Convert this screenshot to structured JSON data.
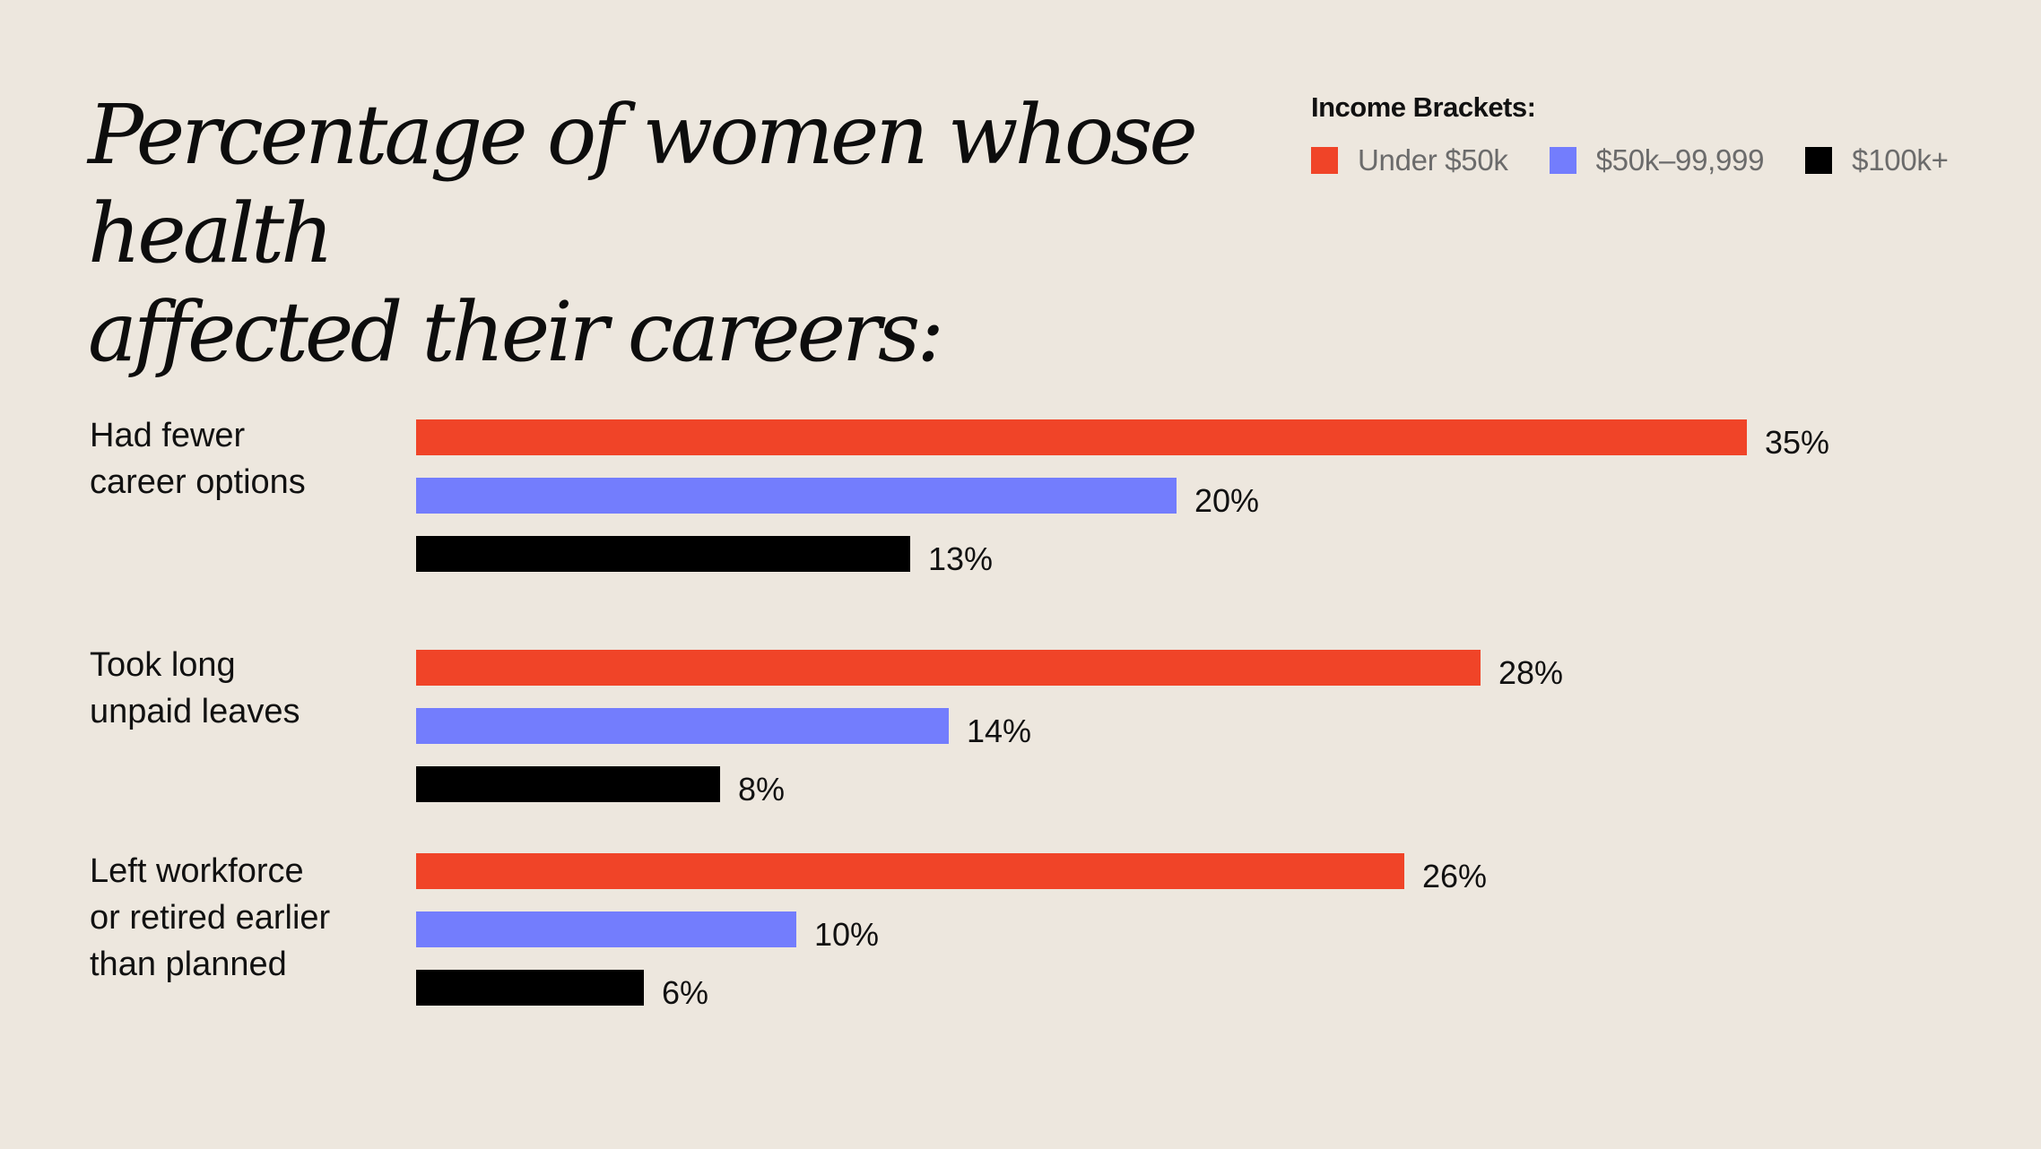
{
  "colors": {
    "background": "#ede7de",
    "under_50k": "#f04428",
    "mid_50k_99999": "#737dfd",
    "over_100k": "#000000"
  },
  "legend": {
    "title": "Income Brackets:",
    "items": [
      {
        "label": "Under $50k",
        "color": "#f04428"
      },
      {
        "label": "$50k–99,999",
        "color": "#737dfd"
      },
      {
        "label": "$100k+",
        "color": "#000000"
      }
    ]
  },
  "chart_data": {
    "type": "bar",
    "orientation": "horizontal",
    "title": "Percentage of women whose health affected their careers:",
    "title_lines": [
      "Percentage of women whose health",
      "affected their careers:"
    ],
    "categories": [
      "Had fewer career options",
      "Took long unpaid leaves",
      "Left workforce or retired earlier than planned"
    ],
    "category_lines": [
      [
        "Had fewer",
        "career options"
      ],
      [
        "Took long",
        "unpaid leaves"
      ],
      [
        "Left workforce",
        "or retired earlier",
        "than planned"
      ]
    ],
    "series": [
      {
        "name": "Under $50k",
        "color": "#f04428",
        "values": [
          35,
          28,
          26
        ],
        "labels": [
          "35%",
          "28%",
          "26%"
        ]
      },
      {
        "name": "$50k–99,999",
        "color": "#737dfd",
        "values": [
          20,
          14,
          10
        ],
        "labels": [
          "20%",
          "14%",
          "10%"
        ]
      },
      {
        "name": "$100k+",
        "color": "#000000",
        "values": [
          13,
          8,
          6
        ],
        "labels": [
          "13%",
          "8%",
          "6%"
        ]
      }
    ],
    "xlim": [
      0,
      35
    ],
    "unit": "%",
    "grid": false,
    "legend_position": "top-right"
  }
}
